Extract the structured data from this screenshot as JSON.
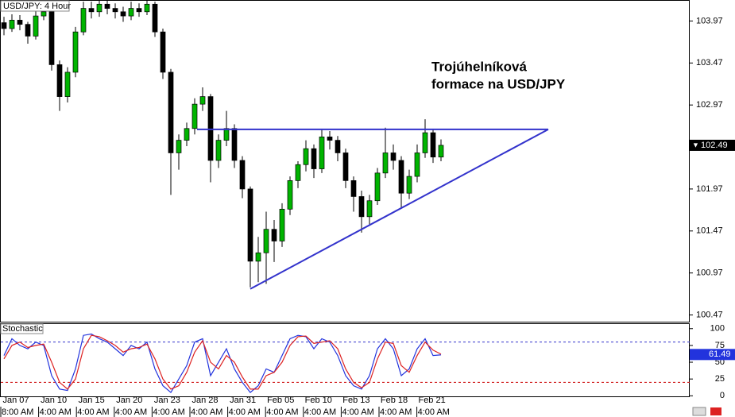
{
  "chart_data": {
    "type": "candlestick",
    "title": "USD/JPY: 4 Hour",
    "annotation": [
      "Trojúhelníková",
      "formace na USD/JPY"
    ],
    "date_labels": [
      "Jan 07",
      "Jan 10",
      "Jan 15",
      "Jan 20",
      "Jan 23",
      "Jan 28",
      "Jan 31",
      "Feb 05",
      "Feb 10",
      "Feb 13",
      "Feb 18",
      "Feb 21"
    ],
    "time_labels": [
      "8:00 AM",
      "4:00 AM",
      "4:00 AM",
      "4:00 AM",
      "4:00 AM",
      "4:00 AM",
      "4:00 AM",
      "4:00 AM",
      "4:00 AM",
      "4:00 AM",
      "4:00 AM",
      "4:00 AM"
    ],
    "up_color": "#00b400",
    "down_color": "#000000",
    "open": [
      103.95,
      103.88,
      103.98,
      103.93,
      103.79,
      104.03,
      104.08,
      103.45,
      103.07,
      103.36,
      103.84,
      104.12,
      104.08,
      104.17,
      104.12,
      104.08,
      104.03,
      104.12,
      104.08,
      104.17,
      103.84,
      103.36,
      102.4,
      102.55,
      102.69,
      102.98,
      103.07,
      102.31,
      102.55,
      102.69,
      102.31,
      101.97,
      101.11,
      101.21,
      101.49,
      101.35,
      101.73,
      102.07,
      102.26,
      102.45,
      102.21,
      102.59,
      102.55,
      102.4,
      102.07,
      101.88,
      101.64,
      101.83,
      102.16,
      102.4,
      102.31,
      101.92,
      102.12,
      102.4,
      102.64,
      102.35
    ],
    "high": [
      104.02,
      104.05,
      104.04,
      103.96,
      104.1,
      104.2,
      104.12,
      103.5,
      103.42,
      103.9,
      104.2,
      104.2,
      104.22,
      104.22,
      104.18,
      104.14,
      104.2,
      104.18,
      104.22,
      104.2,
      103.88,
      103.4,
      102.62,
      102.76,
      103.05,
      103.18,
      103.1,
      102.62,
      102.9,
      102.74,
      102.36,
      102.0,
      101.4,
      101.7,
      101.6,
      101.8,
      102.12,
      102.3,
      102.55,
      102.5,
      102.68,
      102.66,
      102.6,
      102.45,
      102.12,
      101.95,
      101.9,
      102.22,
      102.7,
      102.5,
      102.36,
      102.2,
      102.5,
      102.8,
      102.68,
      102.56
    ],
    "low": [
      103.8,
      103.84,
      103.86,
      103.7,
      103.75,
      103.98,
      103.38,
      102.9,
      103.0,
      103.3,
      103.8,
      104.0,
      104.02,
      104.05,
      104.0,
      103.96,
      103.98,
      104.02,
      104.04,
      103.78,
      103.28,
      101.9,
      102.2,
      102.48,
      102.62,
      102.9,
      102.05,
      102.22,
      102.48,
      102.22,
      101.86,
      100.8,
      100.86,
      100.84,
      101.1,
      101.28,
      101.66,
      101.98,
      102.18,
      102.1,
      102.16,
      102.44,
      102.3,
      101.98,
      101.7,
      101.45,
      101.55,
      101.78,
      102.1,
      102.2,
      101.75,
      101.85,
      102.05,
      102.34,
      102.28,
      102.3
    ],
    "close": [
      103.88,
      103.98,
      103.93,
      103.79,
      104.03,
      104.08,
      103.45,
      103.07,
      103.36,
      103.84,
      104.12,
      104.08,
      104.17,
      104.12,
      104.08,
      104.03,
      104.12,
      104.08,
      104.17,
      103.84,
      103.36,
      102.4,
      102.55,
      102.69,
      102.98,
      103.07,
      102.31,
      102.55,
      102.69,
      102.31,
      101.97,
      101.11,
      101.21,
      101.49,
      101.35,
      101.73,
      102.07,
      102.26,
      102.45,
      102.21,
      102.59,
      102.55,
      102.4,
      102.07,
      101.88,
      101.64,
      101.83,
      102.16,
      102.4,
      102.31,
      101.92,
      102.12,
      102.4,
      102.64,
      102.35,
      102.49
    ],
    "ylim": [
      100.39,
      104.22
    ],
    "yticks": [
      103.97,
      103.47,
      102.97,
      101.97,
      101.47,
      100.97,
      100.47
    ],
    "last_price": 102.49,
    "trendlines": [
      {
        "color": "#3333cc",
        "x": [
          24.3,
          68.5
        ],
        "y": [
          102.68,
          102.68
        ]
      },
      {
        "color": "#3333cc",
        "x": [
          31,
          68.5
        ],
        "y": [
          100.78,
          102.68
        ]
      }
    ],
    "indicator": {
      "title": "Stochastic",
      "ylim": [
        -2,
        108
      ],
      "yticks": [
        100,
        75,
        50,
        25,
        0
      ],
      "levels": [
        {
          "value": 80,
          "color": "#3333cc"
        },
        {
          "value": 20,
          "color": "#cc0000"
        }
      ],
      "last_value": 61.49,
      "series": [
        {
          "color": "#2233dd",
          "values": [
            60,
            85,
            75,
            70,
            80,
            75,
            30,
            10,
            8,
            40,
            90,
            92,
            85,
            80,
            70,
            60,
            75,
            70,
            80,
            40,
            15,
            5,
            25,
            45,
            80,
            85,
            30,
            50,
            70,
            40,
            20,
            5,
            15,
            40,
            35,
            60,
            85,
            90,
            88,
            70,
            85,
            80,
            60,
            30,
            15,
            10,
            30,
            70,
            85,
            70,
            30,
            40,
            70,
            85,
            60,
            61
          ]
        },
        {
          "color": "#dd2222",
          "values": [
            55,
            75,
            80,
            72,
            75,
            77,
            50,
            20,
            10,
            25,
            70,
            90,
            88,
            82,
            75,
            65,
            70,
            72,
            77,
            55,
            25,
            10,
            15,
            35,
            65,
            82,
            50,
            40,
            60,
            50,
            28,
            10,
            10,
            30,
            35,
            50,
            75,
            88,
            89,
            78,
            80,
            82,
            70,
            40,
            20,
            12,
            20,
            55,
            80,
            78,
            45,
            35,
            60,
            80,
            68,
            62
          ]
        }
      ]
    }
  }
}
